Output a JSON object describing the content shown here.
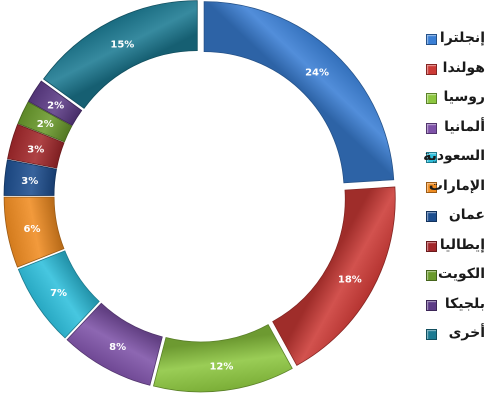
{
  "chart_data": {
    "type": "pie",
    "categories": [
      "إنجلترا",
      "هولندا",
      "روسيا",
      "ألمانيا",
      "السعودية",
      "الإمارات",
      "عمان",
      "إيطاليا",
      "الكويت",
      "بلجيكا",
      "أخرى"
    ],
    "values": [
      24,
      18,
      12,
      8,
      7,
      6,
      3,
      3,
      2,
      2,
      15
    ],
    "labels": [
      "24%",
      "18%",
      "12%",
      "8%",
      "7%",
      "6%",
      "3%",
      "3%",
      "2%",
      "2%",
      "15%"
    ],
    "colors": [
      "#3a7fd5",
      "#cc3a36",
      "#8cc63f",
      "#7e52a8",
      "#2ebfdc",
      "#f08c21",
      "#1d4e8f",
      "#a3282b",
      "#6a9a2c",
      "#5c3b86",
      "#1c7a92"
    ],
    "legend_position": "right",
    "style": "donut"
  },
  "legend": {
    "items": [
      {
        "label": "إنجلترا",
        "color": "#3a7fd5"
      },
      {
        "label": "هولندا",
        "color": "#cc3a36"
      },
      {
        "label": "روسيا",
        "color": "#8cc63f"
      },
      {
        "label": "ألمانيا",
        "color": "#7e52a8"
      },
      {
        "label": "السعودية",
        "color": "#2ebfdc"
      },
      {
        "label": "الإمارات",
        "color": "#f08c21"
      },
      {
        "label": "عمان",
        "color": "#1d4e8f"
      },
      {
        "label": "إيطاليا",
        "color": "#a3282b"
      },
      {
        "label": "الكويت",
        "color": "#6a9a2c"
      },
      {
        "label": "بلجيكا",
        "color": "#5c3b86"
      },
      {
        "label": "أخرى",
        "color": "#1c7a92"
      }
    ]
  }
}
